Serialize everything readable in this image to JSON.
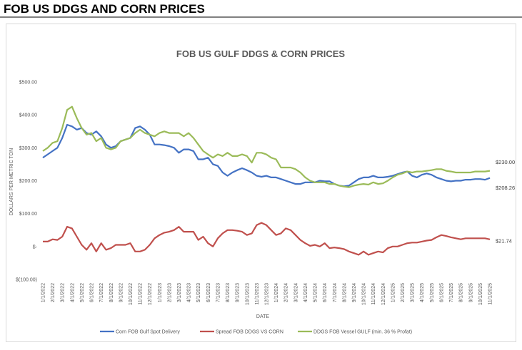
{
  "header": {
    "title": "FOB US DDGS AND CORN PRICES"
  },
  "chart_data": {
    "type": "line",
    "title": "FOB US GULF DDGS & CORN PRICES",
    "y_label": "DOLLARS PER METRIC TON",
    "x_label": "DATE",
    "categories": [
      "1/1/2022",
      null,
      "2/1/2022",
      null,
      "3/1/2022",
      null,
      "4/1/2022",
      null,
      "5/1/2022",
      null,
      "6/1/2022",
      null,
      "7/1/2022",
      null,
      "8/1/2022",
      null,
      "9/1/2022",
      null,
      "10/1/2022",
      null,
      "11/1/2022",
      null,
      "12/1/2022",
      null,
      "1/1/2023",
      null,
      "2/1/2023",
      null,
      "3/1/2023",
      null,
      "4/1/2023",
      null,
      "5/1/2023",
      null,
      "6/1/2023",
      null,
      "7/1/2023",
      null,
      "8/1/2023",
      null,
      "9/1/2023",
      null,
      "10/1/2023",
      null,
      "11/1/2023",
      null,
      "12/1/2023",
      null,
      "1/1/2024",
      null,
      "2/1/2024",
      null,
      "3/1/2024",
      null,
      "4/1/2024",
      null,
      "5/1/2024",
      null,
      "6/1/2024",
      null,
      "7/1/2024",
      null,
      "8/1/2024",
      null,
      "9/1/2024",
      null,
      "10/1/2024",
      null,
      "11/1/2024",
      null,
      "12/1/2024",
      null,
      "1/1/2025",
      null,
      "2/1/2025",
      null,
      "3/1/2025",
      null,
      "4/1/2025",
      null,
      "5/1/2025",
      null,
      "6/1/2025",
      null,
      "7/1/2025",
      null,
      "8/1/2025",
      null,
      "9/1/2025",
      null,
      "10/1/2025",
      null,
      "11/1/2025"
    ],
    "series": [
      {
        "name": "Corn FOB Gulf Spot Delivery",
        "color": "#4472c4",
        "end_label": "$208.26",
        "values": [
          270,
          280,
          290,
          300,
          330,
          370,
          365,
          355,
          360,
          345,
          340,
          350,
          335,
          310,
          300,
          305,
          320,
          325,
          330,
          360,
          365,
          355,
          340,
          310,
          310,
          308,
          305,
          300,
          285,
          295,
          295,
          290,
          265,
          265,
          270,
          250,
          245,
          225,
          215,
          225,
          232,
          238,
          232,
          225,
          215,
          212,
          215,
          210,
          210,
          205,
          200,
          195,
          190,
          190,
          195,
          195,
          195,
          200,
          198,
          198,
          190,
          185,
          183,
          185,
          195,
          205,
          210,
          210,
          215,
          210,
          210,
          212,
          215,
          220,
          225,
          228,
          215,
          210,
          218,
          222,
          218,
          210,
          205,
          200,
          198,
          200,
          200,
          203,
          203,
          205,
          205,
          203,
          208.26
        ]
      },
      {
        "name": "Spread FOB DDGS VS CORN",
        "color": "#c0504d",
        "end_label": "$21.74",
        "values": [
          15,
          15,
          22,
          20,
          30,
          60,
          55,
          30,
          5,
          -10,
          10,
          -15,
          10,
          -10,
          -5,
          5,
          5,
          5,
          10,
          -15,
          -15,
          -10,
          5,
          25,
          35,
          42,
          45,
          50,
          60,
          45,
          45,
          45,
          20,
          30,
          10,
          0,
          25,
          40,
          50,
          50,
          48,
          45,
          35,
          40,
          65,
          72,
          65,
          50,
          35,
          40,
          55,
          50,
          35,
          20,
          10,
          2,
          5,
          0,
          10,
          -5,
          -3,
          -5,
          -8,
          -15,
          -20,
          -25,
          -15,
          -25,
          -20,
          -15,
          -18,
          -5,
          0,
          0,
          5,
          10,
          12,
          12,
          15,
          18,
          20,
          28,
          35,
          32,
          28,
          25,
          22,
          25,
          25,
          25,
          25,
          25,
          21.74
        ]
      },
      {
        "name": "DDGS FOB Vessel GULF  (min. 36 % Profat)",
        "color": "#9bbb59",
        "end_label": "$230.00",
        "values": [
          290,
          300,
          315,
          320,
          360,
          415,
          425,
          390,
          360,
          340,
          345,
          320,
          330,
          300,
          295,
          300,
          320,
          325,
          330,
          345,
          355,
          345,
          340,
          335,
          345,
          350,
          345,
          345,
          345,
          335,
          345,
          330,
          310,
          290,
          280,
          270,
          280,
          275,
          285,
          275,
          275,
          280,
          275,
          255,
          285,
          285,
          280,
          270,
          265,
          240,
          240,
          240,
          235,
          225,
          210,
          200,
          195,
          195,
          195,
          190,
          190,
          185,
          182,
          180,
          185,
          188,
          190,
          188,
          195,
          190,
          192,
          200,
          210,
          218,
          222,
          228,
          225,
          228,
          228,
          230,
          232,
          235,
          235,
          230,
          228,
          225,
          225,
          225,
          225,
          228,
          228,
          228,
          230
        ]
      }
    ],
    "ylim": [
      -100,
      500
    ],
    "yticks": [
      {
        "value": -100,
        "label": "$(100.00)"
      },
      {
        "value": 0,
        "label": "$-"
      },
      {
        "value": 100,
        "label": "$100.00"
      },
      {
        "value": 200,
        "label": "$200.00"
      },
      {
        "value": 300,
        "label": "$300.00"
      },
      {
        "value": 400,
        "label": "$400.00"
      },
      {
        "value": 500,
        "label": "$500.00"
      }
    ],
    "grid": false,
    "legend": "bottom"
  }
}
